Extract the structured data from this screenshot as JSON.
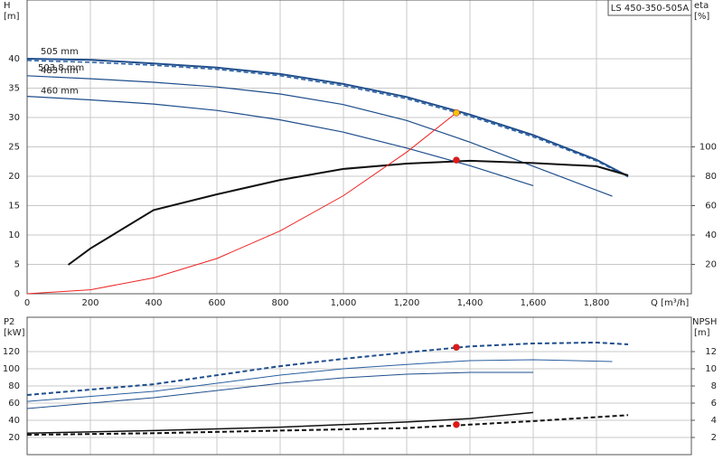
{
  "chart_data": [
    {
      "type": "line",
      "title": "LS 450-350-505A",
      "x_label": "Q [m³/h]",
      "y_label": "H",
      "y_unit": "[m]",
      "y2_label": "eta",
      "y2_unit": "[%]",
      "xlim": [
        0,
        2100
      ],
      "xticks": [
        0,
        200,
        400,
        600,
        800,
        {
          "value": 1000,
          "label": "1,000"
        },
        {
          "value": 1200,
          "label": "1,200"
        },
        {
          "value": 1400,
          "label": "1,400"
        },
        {
          "value": 1600,
          "label": "1,600"
        },
        {
          "value": 1800,
          "label": "1,800"
        }
      ],
      "ylim": [
        0,
        50
      ],
      "yticks": [
        0,
        5,
        10,
        15,
        20,
        25,
        30,
        35,
        40
      ],
      "y2lim": [
        0,
        200
      ],
      "y2ticks": [
        20,
        40,
        60,
        80,
        100
      ],
      "grid": true,
      "series": [
        {
          "name": "505 mm",
          "color": "#1f4e8c",
          "width": 2,
          "x": [
            0,
            200,
            400,
            600,
            800,
            1000,
            1200,
            1400,
            1600,
            1800,
            1900
          ],
          "values": [
            40,
            39.8,
            39.2,
            38.5,
            37.4,
            35.7,
            33.5,
            30.5,
            27,
            22.8,
            20
          ]
        },
        {
          "name": "503.8 mm",
          "color": "#2a5fa0",
          "width": 1.5,
          "dash": true,
          "x": [
            0,
            200,
            400,
            600,
            800,
            1000,
            1200,
            1400,
            1600,
            1800,
            1900
          ],
          "values": [
            39.7,
            39.4,
            38.9,
            38.2,
            37.1,
            35.4,
            33.2,
            30.2,
            26.7,
            22.6,
            19.9
          ]
        },
        {
          "name": "483 mm",
          "color": "#1f4e8c",
          "width": 1.2,
          "x": [
            0,
            200,
            400,
            600,
            800,
            1000,
            1200,
            1400,
            1600,
            1850
          ],
          "values": [
            37.1,
            36.6,
            36,
            35.2,
            34,
            32.2,
            29.5,
            25.8,
            21.7,
            16.6
          ]
        },
        {
          "name": "460 mm",
          "color": "#1f4e8c",
          "width": 1.2,
          "x": [
            0,
            200,
            400,
            600,
            800,
            1000,
            1200,
            1400,
            1600
          ],
          "values": [
            33.6,
            33,
            32.3,
            31.2,
            29.6,
            27.5,
            24.8,
            21.8,
            18.4
          ]
        },
        {
          "color": "#111111",
          "width": 2,
          "axis": "y2",
          "x": [
            130,
            200,
            400,
            600,
            800,
            1000,
            1200,
            1400,
            1600,
            1800,
            1900
          ],
          "values": [
            19.7,
            30.8,
            57,
            67.7,
            77.5,
            85,
            88.6,
            90.5,
            89,
            86.8,
            80.6
          ]
        },
        {
          "color": "#ee2222",
          "width": 1,
          "x": [
            0,
            200,
            400,
            600,
            800,
            1000,
            1200,
            1357
          ],
          "values": [
            0,
            0.67,
            2.7,
            6,
            10.7,
            16.7,
            24.1,
            30.8
          ]
        },
        {
          "color": "#f5c400",
          "style": "marker",
          "x": [
            1357
          ],
          "values": [
            30.8
          ]
        },
        {
          "color": "#e01818",
          "style": "marker",
          "axis": "y2",
          "x": [
            1357
          ],
          "values": [
            91
          ]
        }
      ]
    },
    {
      "type": "line",
      "y_label": "P2",
      "y_unit": "[kW]",
      "y2_label": "NPSH",
      "y2_unit": "[m]",
      "xlim": [
        0,
        2100
      ],
      "xticks": [
        0,
        200,
        400,
        600,
        800,
        1000,
        1200,
        1400,
        1600,
        1800
      ],
      "ylim": [
        0,
        160
      ],
      "yticks": [
        20,
        40,
        60,
        80,
        100,
        120
      ],
      "y2lim": [
        0,
        16
      ],
      "y2ticks": [
        2,
        4,
        6,
        8,
        10,
        12
      ],
      "grid": true,
      "series": [
        {
          "color": "#1f4e8c",
          "width": 2,
          "dash": true,
          "x": [
            0,
            400,
            800,
            1000,
            1200,
            1400,
            1600,
            1800,
            1900
          ],
          "values": [
            69.5,
            82,
            103,
            111.6,
            119,
            126,
            129.5,
            130.5,
            128.4
          ]
        },
        {
          "color": "#2a5fa0",
          "width": 1,
          "x": [
            0,
            400,
            800,
            1000,
            1200,
            1400,
            1600,
            1850
          ],
          "values": [
            62,
            73.7,
            92.6,
            100,
            105,
            109.5,
            110.5,
            108.4
          ]
        },
        {
          "color": "#1f4e8c",
          "width": 1,
          "x": [
            0,
            400,
            800,
            1000,
            1200,
            1400,
            1600
          ],
          "values": [
            53.7,
            66.3,
            83,
            89.5,
            93.7,
            95.8,
            95.8
          ]
        },
        {
          "color": "#111111",
          "width": 1.5,
          "axis": "y2",
          "x": [
            0,
            400,
            800,
            1200,
            1400,
            1600
          ],
          "values": [
            2.5,
            2.8,
            3.2,
            3.8,
            4.2,
            4.9
          ]
        },
        {
          "color": "#111111",
          "width": 2,
          "dash": true,
          "axis": "y2",
          "x": [
            0,
            400,
            800,
            1200,
            1400,
            1600,
            1900
          ],
          "values": [
            2.3,
            2.5,
            2.8,
            3.1,
            3.5,
            3.9,
            4.6
          ]
        },
        {
          "color": "#e01818",
          "style": "marker",
          "x": [
            1357
          ],
          "values": [
            125
          ]
        },
        {
          "color": "#e01818",
          "style": "marker",
          "axis": "y2",
          "x": [
            1357
          ],
          "values": [
            3.5
          ]
        }
      ]
    }
  ]
}
